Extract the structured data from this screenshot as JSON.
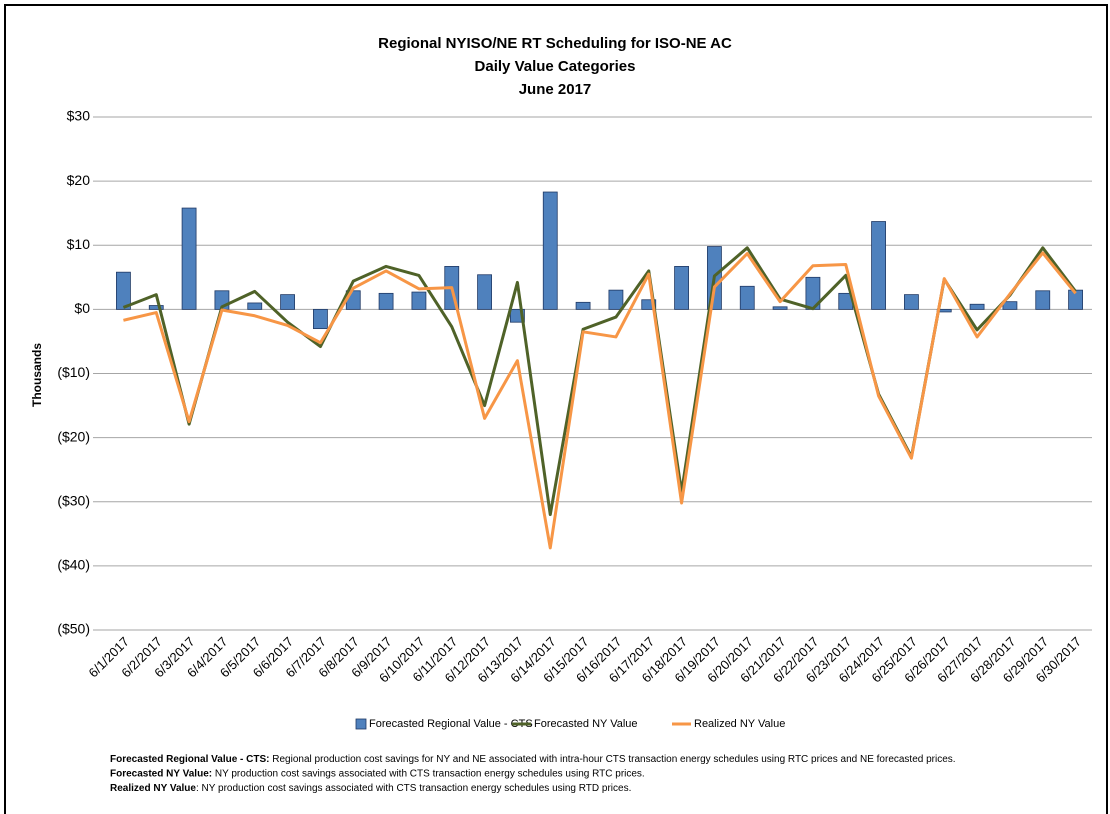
{
  "chart_data": {
    "type": "bar_line",
    "title": [
      "Regional NYISO/NE RT Scheduling for ISO-NE AC",
      "Daily Value Categories",
      "June 2017"
    ],
    "y_label": "Thousands",
    "categories": [
      "6/1/2017",
      "6/2/2017",
      "6/3/2017",
      "6/4/2017",
      "6/5/2017",
      "6/6/2017",
      "6/7/2017",
      "6/8/2017",
      "6/9/2017",
      "6/10/2017",
      "6/11/2017",
      "6/12/2017",
      "6/13/2017",
      "6/14/2017",
      "6/15/2017",
      "6/16/2017",
      "6/17/2017",
      "6/18/2017",
      "6/19/2017",
      "6/20/2017",
      "6/21/2017",
      "6/22/2017",
      "6/23/2017",
      "6/24/2017",
      "6/25/2017",
      "6/26/2017",
      "6/27/2017",
      "6/28/2017",
      "6/29/2017",
      "6/30/2017"
    ],
    "series": [
      {
        "name": "Forecasted Regional Value - CTS",
        "type": "bar",
        "color": "#4f81bd",
        "values": [
          5.8,
          0.6,
          15.8,
          2.9,
          1.0,
          2.3,
          -3.0,
          2.9,
          2.5,
          2.7,
          6.7,
          5.4,
          -2.0,
          18.3,
          1.1,
          3.0,
          1.5,
          6.7,
          9.8,
          3.6,
          0.4,
          5.0,
          2.5,
          13.7,
          2.3,
          -0.4,
          0.8,
          1.2,
          2.9,
          3.0
        ]
      },
      {
        "name": "Forecasted NY Value",
        "type": "line",
        "color": "#4f6228",
        "values": [
          0.3,
          2.3,
          -17.9,
          0.4,
          2.8,
          -2.0,
          -5.8,
          4.4,
          6.7,
          5.3,
          -2.7,
          -15.0,
          4.2,
          -32.0,
          -3.1,
          -1.2,
          6.0,
          -28.5,
          5.2,
          9.6,
          1.6,
          0.1,
          5.3,
          -13.2,
          -23.0,
          4.7,
          -3.2,
          2.2,
          9.6,
          2.8
        ]
      },
      {
        "name": "Realized NY Value",
        "type": "line",
        "color": "#f79646",
        "values": [
          -1.7,
          -0.5,
          -17.5,
          -0.1,
          -1.0,
          -2.5,
          -5.2,
          3.3,
          6.0,
          3.2,
          3.4,
          -17.0,
          -8.0,
          -37.2,
          -3.5,
          -4.3,
          5.5,
          -30.2,
          3.5,
          8.7,
          1.2,
          6.8,
          7.0,
          -13.5,
          -23.2,
          4.8,
          -4.3,
          2.4,
          8.8,
          2.5
        ]
      }
    ],
    "ylim": [
      -50,
      30
    ],
    "yticks": [
      {
        "value": -50,
        "label": "($50)"
      },
      {
        "value": -40,
        "label": "($40)"
      },
      {
        "value": -30,
        "label": "($30)"
      },
      {
        "value": -20,
        "label": "($20)"
      },
      {
        "value": -10,
        "label": "($10)"
      },
      {
        "value": 0,
        "label": "$0"
      },
      {
        "value": 10,
        "label": "$10"
      },
      {
        "value": 20,
        "label": "$20"
      },
      {
        "value": 30,
        "label": "$30"
      }
    ],
    "negative_tick_color": "#ff0000",
    "grid": true,
    "legend": "bottom",
    "notes": [
      {
        "term": "Forecasted Regional Value - CTS:",
        "text": " Regional production cost savings for NY and NE associated with intra-hour CTS transaction energy schedules using RTC prices and NE forecasted prices."
      },
      {
        "term": "Forecasted NY Value:",
        "text": " NY production cost savings associated with CTS transaction energy schedules using RTC prices."
      },
      {
        "term": "Realized NY Value",
        "text": ": NY production cost savings associated with CTS transaction energy schedules using RTD prices."
      }
    ]
  }
}
